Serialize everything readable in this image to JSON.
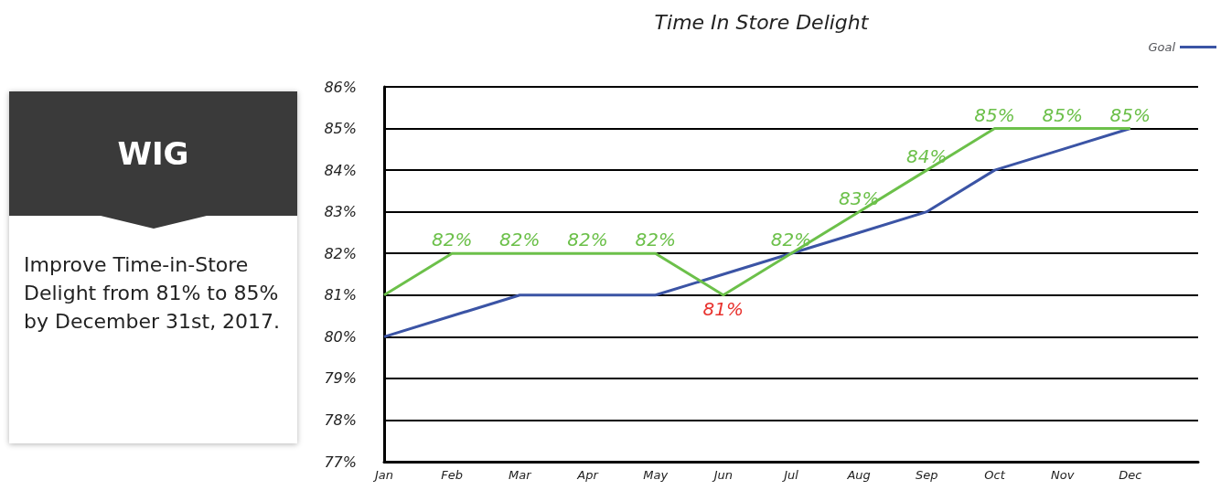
{
  "chart_data": {
    "type": "line",
    "title": "Time In Store Delight",
    "categories": [
      "Jan",
      "Feb",
      "Mar",
      "Apr",
      "May",
      "Jun",
      "Jul",
      "Aug",
      "Sep",
      "Oct",
      "Nov",
      "Dec"
    ],
    "series": [
      {
        "name": "Goal",
        "color": "#3b54a5",
        "values": [
          80,
          80.5,
          81,
          81,
          81,
          81.5,
          82,
          82.5,
          83,
          84,
          84.5,
          85
        ]
      },
      {
        "color": "#6cc04a",
        "colors": [
          "#6cc04a",
          "#6cc04a",
          "#6cc04a",
          "#6cc04a",
          "#6cc04a",
          "#e8332f",
          "#6cc04a",
          "#6cc04a",
          "#6cc04a",
          "#6cc04a",
          "#6cc04a",
          "#6cc04a"
        ],
        "values": [
          81,
          82,
          82,
          82,
          82,
          81,
          82,
          83,
          84,
          85,
          85,
          85
        ],
        "value_labels": [
          null,
          "82%",
          "82%",
          "82%",
          "82%",
          "81%",
          "82%",
          "83%",
          "84%",
          "85%",
          "85%",
          "85%"
        ]
      }
    ],
    "ylim": [
      77,
      86
    ],
    "yticks": [
      {
        "value": 77,
        "label": "77%"
      },
      {
        "value": 78,
        "label": "78%"
      },
      {
        "value": 79,
        "label": "79%"
      },
      {
        "value": 80,
        "label": "80%"
      },
      {
        "value": 81,
        "label": "81%"
      },
      {
        "value": 82,
        "label": "82%"
      },
      {
        "value": 83,
        "label": "83%"
      },
      {
        "value": 84,
        "label": "84%"
      },
      {
        "value": 85,
        "label": "85%"
      },
      {
        "value": 86,
        "label": "86%"
      }
    ],
    "grid": "y",
    "legend": "top right",
    "marker": "none",
    "line_style": "solid",
    "annotations": [
      "WIG",
      "Improve Time-in-Store Delight from 81% to 85% by December 31st, 2017."
    ]
  }
}
